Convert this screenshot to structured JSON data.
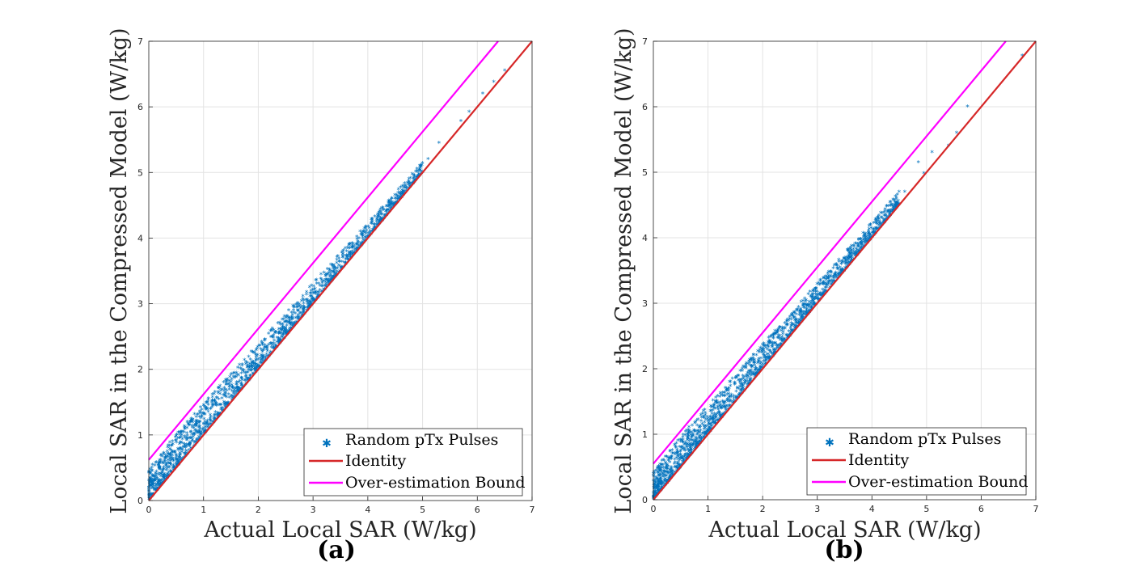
{
  "chart_data": [
    {
      "type": "scatter",
      "panel_label": "(a)",
      "xlabel": "Actual Local SAR (W/kg)",
      "ylabel": "Local SAR in the Compressed Model (W/kg)",
      "xlim": [
        0,
        7
      ],
      "ylim": [
        0,
        7
      ],
      "xticks": [
        "0",
        "1",
        "2",
        "3",
        "4",
        "5",
        "6",
        "7"
      ],
      "yticks": [
        "0",
        "1",
        "2",
        "3",
        "4",
        "5",
        "6",
        "7"
      ],
      "grid": true,
      "legend_position": "bottom-right",
      "series": [
        {
          "name": "Random pTx Pulses",
          "kind": "scatter",
          "marker": "asterisk",
          "color": "#0072BD",
          "band": {
            "x_range": [
              0,
              5.0
            ],
            "lower_offset": 0.0,
            "upper_offset_at_0": 0.55,
            "upper_offset_at_max": 0.15
          },
          "outliers": [
            [
              5.1,
              5.2
            ],
            [
              5.3,
              5.45
            ],
            [
              5.7,
              5.78
            ],
            [
              5.85,
              5.92
            ],
            [
              6.1,
              6.2
            ],
            [
              6.3,
              6.38
            ],
            [
              6.5,
              6.55
            ]
          ]
        },
        {
          "name": "Identity",
          "kind": "line",
          "color": "#D62728",
          "x": [
            0,
            7
          ],
          "y": [
            0,
            7
          ]
        },
        {
          "name": "Over-estimation Bound",
          "kind": "line",
          "color": "#FF00FF",
          "x": [
            0,
            6.38
          ],
          "y": [
            0.62,
            7
          ]
        }
      ]
    },
    {
      "type": "scatter",
      "panel_label": "(b)",
      "xlabel": "Actual Local SAR (W/kg)",
      "ylabel": "Local SAR in the Compressed Model (W/kg)",
      "xlim": [
        0,
        7
      ],
      "ylim": [
        0,
        7
      ],
      "xticks": [
        "0",
        "1",
        "2",
        "3",
        "4",
        "5",
        "6",
        "7"
      ],
      "yticks": [
        "0",
        "1",
        "2",
        "3",
        "4",
        "5",
        "6",
        "7"
      ],
      "grid": true,
      "legend_position": "bottom-right",
      "series": [
        {
          "name": "Random pTx Pulses",
          "kind": "scatter",
          "marker": "asterisk",
          "color": "#0072BD",
          "band": {
            "x_range": [
              0,
              4.5
            ],
            "lower_offset": 0.0,
            "upper_offset_at_0": 0.5,
            "upper_offset_at_max": 0.2
          },
          "outliers": [
            [
              4.6,
              4.7
            ],
            [
              4.85,
              5.15
            ],
            [
              4.95,
              4.98
            ],
            [
              5.1,
              5.3
            ],
            [
              5.4,
              5.4
            ],
            [
              5.55,
              5.6
            ],
            [
              5.75,
              6.0
            ],
            [
              6.75,
              6.78
            ]
          ]
        },
        {
          "name": "Identity",
          "kind": "line",
          "color": "#D62728",
          "x": [
            0,
            7
          ],
          "y": [
            0,
            7
          ]
        },
        {
          "name": "Over-estimation Bound",
          "kind": "line",
          "color": "#FF00FF",
          "x": [
            0,
            6.45
          ],
          "y": [
            0.55,
            7
          ]
        }
      ]
    }
  ]
}
